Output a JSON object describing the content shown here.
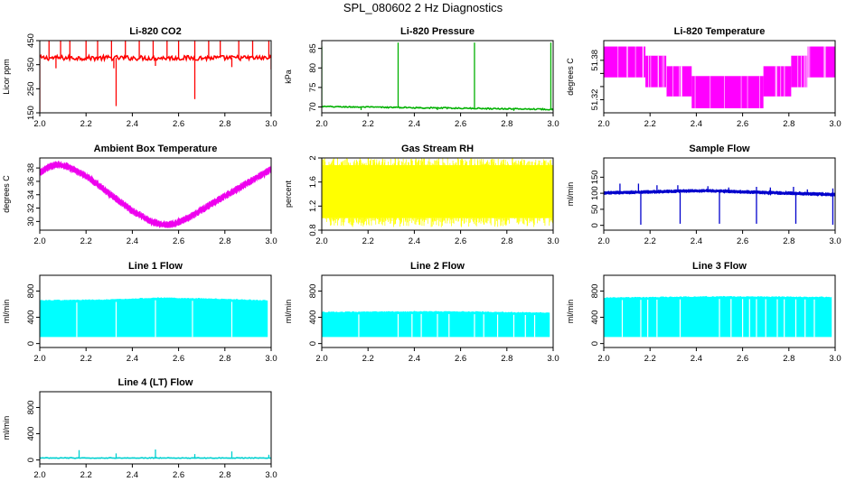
{
  "page": {
    "title": "SPL_080602  2 Hz Diagnostics"
  },
  "chart_data": [
    {
      "type": "line",
      "title": "Li-820 CO2",
      "xlabel": "",
      "ylabel": "Licor ppm",
      "xlim": [
        2.0,
        3.0
      ],
      "ylim": [
        150,
        450
      ],
      "xticks": [
        2.0,
        2.2,
        2.4,
        2.6,
        2.8,
        3.0
      ],
      "yticks": [
        150,
        250,
        350,
        450
      ],
      "color": "#ff0000",
      "series": [
        {
          "baseline": 378,
          "noise": 10,
          "trend": [],
          "up_spikes": [
            [
              2.04,
              450
            ],
            [
              2.09,
              450
            ],
            [
              2.13,
              450
            ],
            [
              2.2,
              450
            ],
            [
              2.25,
              450
            ],
            [
              2.31,
              450
            ],
            [
              2.37,
              450
            ],
            [
              2.43,
              450
            ],
            [
              2.49,
              450
            ],
            [
              2.55,
              450
            ],
            [
              2.6,
              450
            ],
            [
              2.67,
              450
            ],
            [
              2.73,
              450
            ],
            [
              2.78,
              450
            ],
            [
              2.86,
              450
            ],
            [
              2.92,
              450
            ],
            [
              2.99,
              450
            ]
          ],
          "down_spikes": [
            [
              2.0,
              155
            ],
            [
              2.33,
              178
            ],
            [
              2.67,
              207
            ],
            [
              2.07,
              335
            ],
            [
              2.32,
              335
            ],
            [
              2.5,
              345
            ],
            [
              2.83,
              340
            ],
            [
              3.0,
              330
            ]
          ]
        }
      ]
    },
    {
      "type": "line",
      "title": "Li-820 Pressure",
      "xlabel": "",
      "ylabel": "kPa",
      "xlim": [
        2.0,
        3.0
      ],
      "ylim": [
        68.5,
        87
      ],
      "xticks": [
        2.0,
        2.2,
        2.4,
        2.6,
        2.8,
        3.0
      ],
      "yticks": [
        70,
        75,
        80,
        85
      ],
      "color": "#00b000",
      "series": [
        {
          "baseline": 70,
          "noise": 0.15,
          "trend": [
            [
              2.0,
              70.1
            ],
            [
              3.0,
              69.4
            ]
          ],
          "up_spikes": [
            [
              2.0,
              85.5
            ],
            [
              2.33,
              86.5
            ],
            [
              2.66,
              86.5
            ],
            [
              2.99,
              86.5
            ]
          ],
          "down_spikes": [
            [
              2.17,
              69.2
            ],
            [
              2.5,
              69.2
            ],
            [
              2.83,
              69.0
            ]
          ]
        }
      ]
    },
    {
      "type": "line",
      "title": "Li-820 Temperature",
      "xlabel": "",
      "ylabel": "degrees C",
      "xlim": [
        2.0,
        3.0
      ],
      "ylim": [
        51.3,
        51.41
      ],
      "xticks": [
        2.0,
        2.2,
        2.4,
        2.6,
        2.8,
        3.0
      ],
      "yticks": [
        51.32,
        51.34,
        51.36,
        51.38
      ],
      "ytick_labels": [
        "51.32",
        "",
        "",
        "51.38"
      ],
      "color": "#ff00ff",
      "series": [
        {
          "steps": [
            [
              2.0,
              2.18,
              51.354,
              51.401
            ],
            [
              2.18,
              2.27,
              51.339,
              51.387
            ],
            [
              2.27,
              2.38,
              51.325,
              51.371
            ],
            [
              2.38,
              2.69,
              51.307,
              51.356
            ],
            [
              2.69,
              2.81,
              51.325,
              51.371
            ],
            [
              2.81,
              2.88,
              51.339,
              51.387
            ],
            [
              2.88,
              3.0,
              51.354,
              51.401
            ]
          ]
        }
      ]
    },
    {
      "type": "line",
      "title": "Ambient Box Temperature",
      "xlabel": "",
      "ylabel": "degrees C",
      "xlim": [
        2.0,
        3.0
      ],
      "ylim": [
        28.7,
        39.5
      ],
      "xticks": [
        2.0,
        2.2,
        2.4,
        2.6,
        2.8,
        3.0
      ],
      "yticks": [
        30,
        32,
        34,
        36,
        38
      ],
      "color": "#ee00ee",
      "series": [
        {
          "baseline": 34,
          "noise": 0.5,
          "band": 0.6,
          "up_spikes": [],
          "down_spikes": [],
          "trend": [
            [
              2.0,
              37.3
            ],
            [
              2.04,
              38.2
            ],
            [
              2.08,
              38.5
            ],
            [
              2.12,
              38.2
            ],
            [
              2.2,
              36.8
            ],
            [
              2.3,
              34.2
            ],
            [
              2.4,
              31.6
            ],
            [
              2.48,
              30.0
            ],
            [
              2.53,
              29.5
            ],
            [
              2.58,
              29.6
            ],
            [
              2.65,
              30.7
            ],
            [
              2.75,
              32.8
            ],
            [
              2.85,
              34.8
            ],
            [
              2.95,
              36.8
            ],
            [
              3.0,
              37.8
            ]
          ]
        }
      ]
    },
    {
      "type": "line",
      "title": "Gas Stream RH",
      "xlabel": "",
      "ylabel": "percent",
      "xlim": [
        2.0,
        3.0
      ],
      "ylim": [
        0.8,
        2.0
      ],
      "xticks": [
        2.0,
        2.2,
        2.4,
        2.6,
        2.8,
        3.0
      ],
      "yticks": [
        0.8,
        1.2,
        1.6,
        2.0
      ],
      "color": "#ffff00",
      "series": [
        {
          "range_fill": [
            1.0,
            1.88
          ],
          "extremes": [
            0.85,
            2.0
          ]
        }
      ]
    },
    {
      "type": "line",
      "title": "Sample Flow",
      "xlabel": "",
      "ylabel": "ml/min",
      "xlim": [
        2.0,
        3.0
      ],
      "ylim": [
        -15,
        210
      ],
      "xticks": [
        2.0,
        2.2,
        2.4,
        2.6,
        2.8,
        3.0
      ],
      "yticks": [
        0,
        50,
        100,
        150
      ],
      "color": "#0000cc",
      "series": [
        {
          "baseline": 100,
          "noise": 4,
          "band": 6,
          "trend": [
            [
              2.0,
              101
            ],
            [
              2.3,
              106
            ],
            [
              2.45,
              108
            ],
            [
              2.7,
              102
            ],
            [
              3.0,
              96
            ]
          ],
          "up_spikes": [
            [
              2.07,
              130
            ],
            [
              2.15,
              130
            ],
            [
              2.23,
              125
            ],
            [
              2.32,
              125
            ],
            [
              2.45,
              122
            ],
            [
              2.54,
              118
            ],
            [
              2.66,
              120
            ],
            [
              2.72,
              118
            ],
            [
              2.82,
              120
            ],
            [
              2.88,
              112
            ],
            [
              2.99,
              115
            ]
          ],
          "down_spikes": [
            [
              2.16,
              2
            ],
            [
              2.33,
              5
            ],
            [
              2.5,
              5
            ],
            [
              2.66,
              5
            ],
            [
              2.83,
              5
            ],
            [
              2.99,
              2
            ]
          ]
        }
      ]
    },
    {
      "type": "line",
      "title": "Line 1 Flow",
      "xlabel": "",
      "ylabel": "ml/min",
      "xlim": [
        2.0,
        3.0
      ],
      "ylim": [
        -60,
        1040
      ],
      "xticks": [
        2.0,
        2.2,
        2.4,
        2.6,
        2.8,
        3.0
      ],
      "yticks": [
        0,
        400,
        800
      ],
      "color": "#00ffff",
      "series": [
        {
          "band_low": 100,
          "band_high": [
            [
              2.0,
              660
            ],
            [
              2.3,
              670
            ],
            [
              2.5,
              700
            ],
            [
              2.7,
              690
            ],
            [
              2.98,
              660
            ]
          ],
          "xmax": 2.985,
          "gaps": [
            2.16,
            2.33,
            2.5,
            2.66,
            2.83
          ]
        }
      ]
    },
    {
      "type": "line",
      "title": "Line 2 Flow",
      "xlabel": "",
      "ylabel": "ml/min",
      "xlim": [
        2.0,
        3.0
      ],
      "ylim": [
        -60,
        1040
      ],
      "xticks": [
        2.0,
        2.2,
        2.4,
        2.6,
        2.8,
        3.0
      ],
      "yticks": [
        0,
        400,
        800
      ],
      "color": "#00ffff",
      "series": [
        {
          "band_low": 100,
          "band_high": [
            [
              2.0,
              480
            ],
            [
              2.4,
              490
            ],
            [
              2.6,
              490
            ],
            [
              2.98,
              470
            ]
          ],
          "xmax": 2.985,
          "gaps": [
            2.16,
            2.33,
            2.39,
            2.43,
            2.5,
            2.55,
            2.66,
            2.7,
            2.76,
            2.83,
            2.88,
            2.92
          ]
        }
      ]
    },
    {
      "type": "line",
      "title": "Line 3 Flow",
      "xlabel": "",
      "ylabel": "ml/min",
      "xlim": [
        2.0,
        3.0
      ],
      "ylim": [
        -60,
        1040
      ],
      "xticks": [
        2.0,
        2.2,
        2.4,
        2.6,
        2.8,
        3.0
      ],
      "yticks": [
        0,
        400,
        800
      ],
      "color": "#00ffff",
      "series": [
        {
          "band_low": 100,
          "band_high": [
            [
              2.0,
              700
            ],
            [
              2.5,
              720
            ],
            [
              2.98,
              710
            ]
          ],
          "xmax": 2.985,
          "gaps": [
            2.08,
            2.16,
            2.19,
            2.23,
            2.33,
            2.5,
            2.55,
            2.6,
            2.63,
            2.66,
            2.7,
            2.75,
            2.78,
            2.83,
            2.87,
            2.91
          ]
        }
      ]
    },
    {
      "type": "line",
      "title": "Line 4 (LT) Flow",
      "xlabel": "",
      "ylabel": "ml/min",
      "xlim": [
        2.0,
        3.0
      ],
      "ylim": [
        -60,
        1040
      ],
      "xticks": [
        2.0,
        2.2,
        2.4,
        2.6,
        2.8,
        3.0
      ],
      "yticks": [
        0,
        400,
        800
      ],
      "color": "#00d0d0",
      "series": [
        {
          "baseline": 30,
          "noise": 5,
          "trend": [],
          "up_spikes": [
            [
              2.17,
              150
            ],
            [
              2.33,
              100
            ],
            [
              2.5,
              160
            ],
            [
              2.67,
              90
            ],
            [
              2.83,
              130
            ],
            [
              2.99,
              80
            ]
          ],
          "down_spikes": []
        }
      ]
    }
  ]
}
